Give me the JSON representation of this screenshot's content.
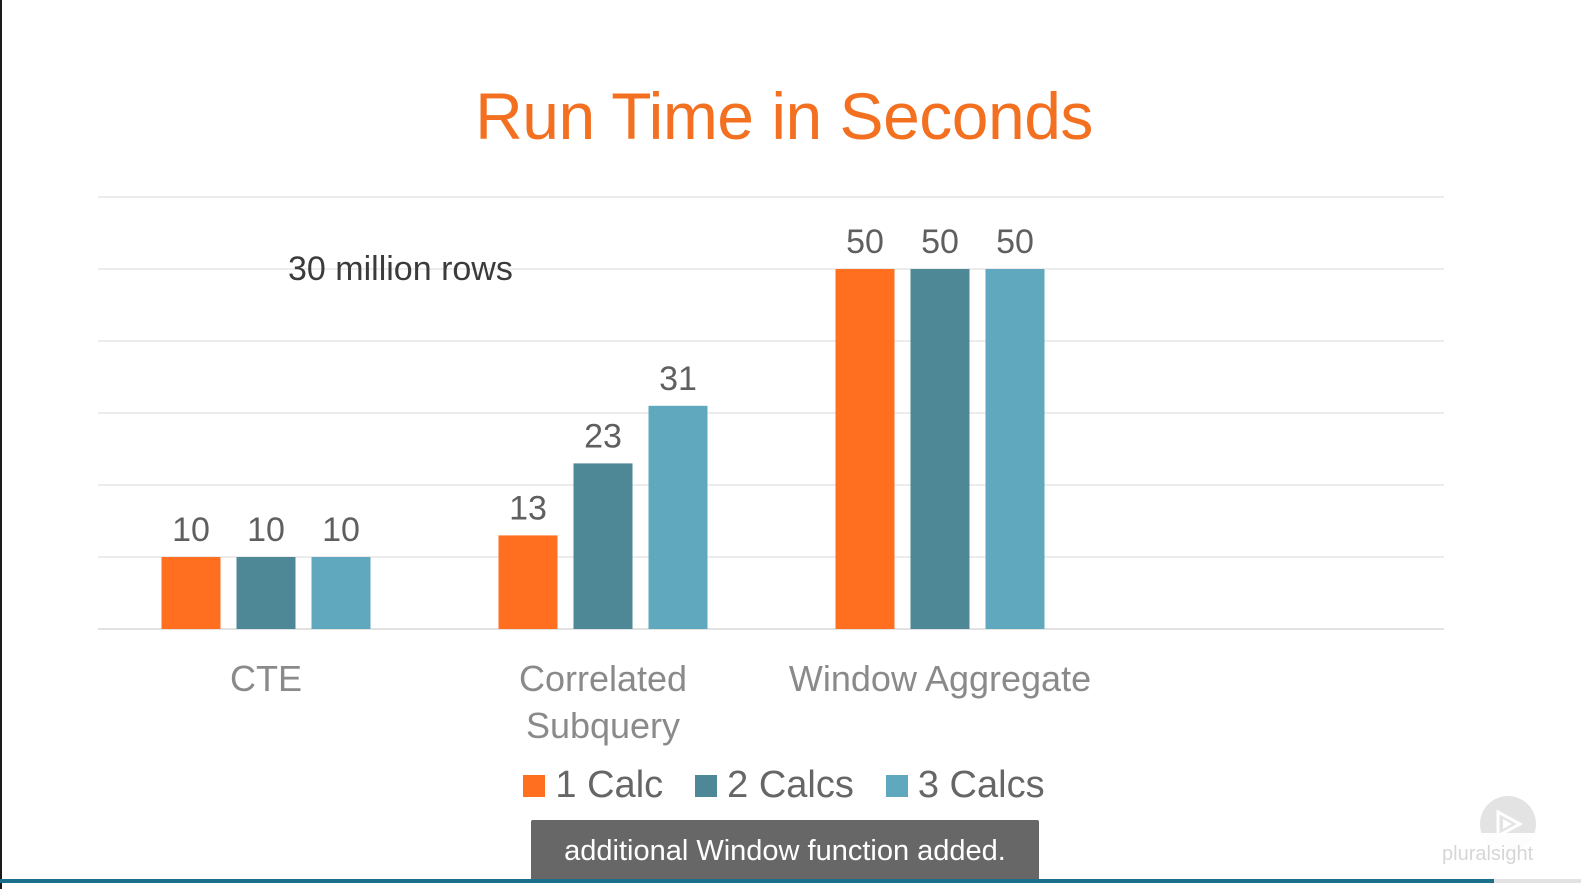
{
  "chart_data": {
    "type": "bar",
    "title": "Run Time in Seconds",
    "annotation": "30 million rows",
    "categories": [
      [
        "CTE"
      ],
      [
        "Correlated",
        "Subquery"
      ],
      [
        "Window Aggregate"
      ]
    ],
    "series": [
      {
        "name": "1 Calc",
        "values": [
          10,
          13,
          50
        ],
        "color": "#ff6f1f"
      },
      {
        "name": "2 Calcs",
        "values": [
          10,
          23,
          50
        ],
        "color": "#4e8795"
      },
      {
        "name": "3 Calcs",
        "values": [
          10,
          31,
          50
        ],
        "color": "#5fa8bd"
      }
    ],
    "ylim": [
      0,
      60
    ],
    "grid": true,
    "legend_position": "bottom",
    "data_labels": true
  },
  "player": {
    "caption": "additional Window function added.",
    "progress": 0.945,
    "play_icon": "play-icon",
    "watermark": "pluralsight"
  }
}
